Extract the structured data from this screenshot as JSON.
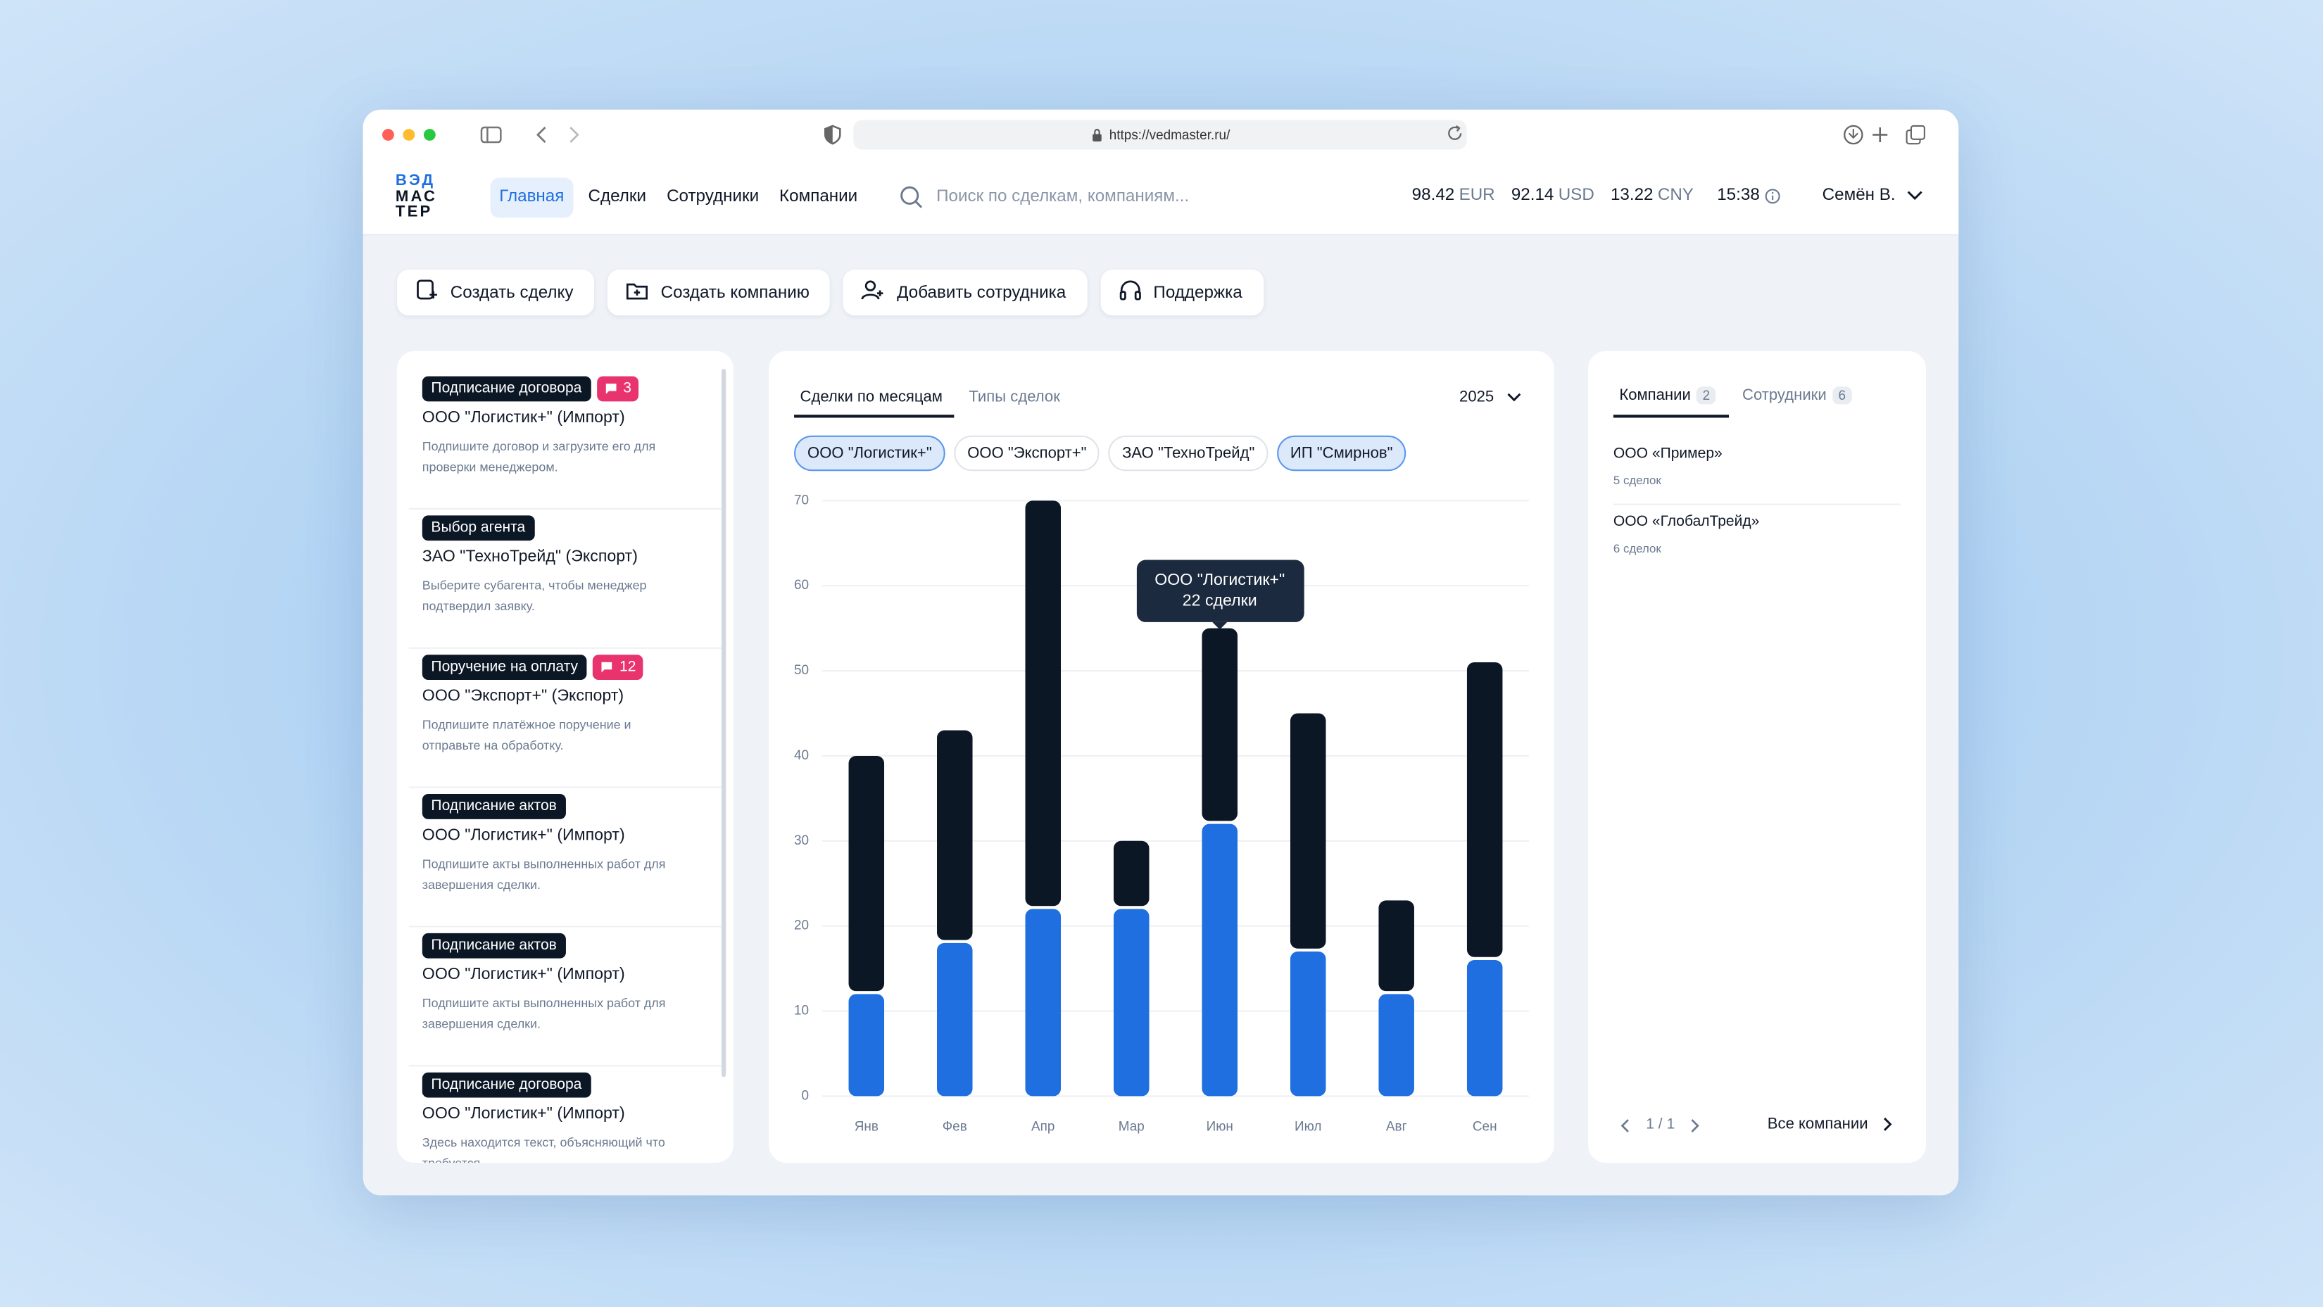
{
  "browser": {
    "url": "https://vedmaster.ru/"
  },
  "header": {
    "logo": [
      "ВЭД",
      "МАС",
      "ТЕР"
    ],
    "nav": [
      "Главная",
      "Сделки",
      "Сотрудники",
      "Компании"
    ],
    "search_placeholder": "Поиск по сделкам, компаниям...",
    "rates": [
      {
        "value": 98.42,
        "currency": "EUR"
      },
      {
        "value": 92.14,
        "currency": "USD"
      },
      {
        "value": 13.22,
        "currency": "CNY"
      }
    ],
    "time": "15:38",
    "user": "Семён В."
  },
  "actions": [
    "Создать сделку",
    "Создать компанию",
    "Добавить сотрудника",
    "Поддержка"
  ],
  "tasks": [
    {
      "tag": "Подписание договора",
      "badge": 3,
      "company": "ООО \"Логистик+\" (Импорт)",
      "description": "Подпишите договор и загрузите его для проверки менеджером."
    },
    {
      "tag": "Выбор агента",
      "company": "ЗАО \"ТехноТрейд\" (Экспорт)",
      "description": "Выберите субагента, чтобы менеджер подтвердил заявку."
    },
    {
      "tag": "Поручение на оплату",
      "badge": 12,
      "company": "ООО \"Экспорт+\" (Экспорт)",
      "description": "Подпишите платёжное поручение и отправьте на обработку."
    },
    {
      "tag": "Подписание актов",
      "company": "ООО \"Логистик+\" (Импорт)",
      "description": "Подпишите акты выполненных работ для завершения сделки."
    },
    {
      "tag": "Подписание актов",
      "company": "ООО \"Логистик+\" (Импорт)",
      "description": "Подпишите акты выполненных работ для завершения сделки."
    },
    {
      "tag": "Подписание договора",
      "company": "ООО \"Логистик+\" (Импорт)",
      "description": "Здесь находится текст, объясняющий что требуется"
    }
  ],
  "chart_panel": {
    "tabs": [
      "Сделки по месяцам",
      "Типы сделок"
    ],
    "year": "2025",
    "filters": [
      {
        "label": "ООО \"Логистик+\"",
        "selected": true
      },
      {
        "label": "ООО \"Экспорт+\"",
        "selected": false
      },
      {
        "label": "ЗАО \"ТехноТрейд\"",
        "selected": false
      },
      {
        "label": "ИП \"Смирнов\"",
        "selected": true
      }
    ]
  },
  "chart_data": {
    "type": "stacked_bar",
    "categories": [
      "Янв",
      "Фев",
      "Апр",
      "Мар",
      "Июн",
      "Июл",
      "Авг",
      "Сен"
    ],
    "series": [
      {
        "color": "#1f6fe0",
        "values": [
          12,
          18,
          22,
          22,
          32,
          17,
          12,
          16
        ]
      },
      {
        "color": "#0c1726",
        "values": [
          28,
          25,
          48,
          8,
          23,
          28,
          11,
          35
        ]
      }
    ],
    "ylim": [
      0,
      70
    ],
    "yticks": [
      0,
      10,
      20,
      30,
      40,
      50,
      60,
      70
    ],
    "grid": true,
    "tooltip": {
      "title": "ООО \"Логистик+\"",
      "text": "22 сделки",
      "category": 4
    }
  },
  "side_panel": {
    "tabs": [
      {
        "label": "Компании",
        "count": 2
      },
      {
        "label": "Сотрудники",
        "count": 6
      }
    ],
    "companies": [
      {
        "name": "ООО «Пример»",
        "deals": "5 сделок"
      },
      {
        "name": "ООО «ГлобалТрейд»",
        "deals": "6 сделок"
      }
    ],
    "pagination": "1 / 1",
    "link": "Все компании"
  }
}
